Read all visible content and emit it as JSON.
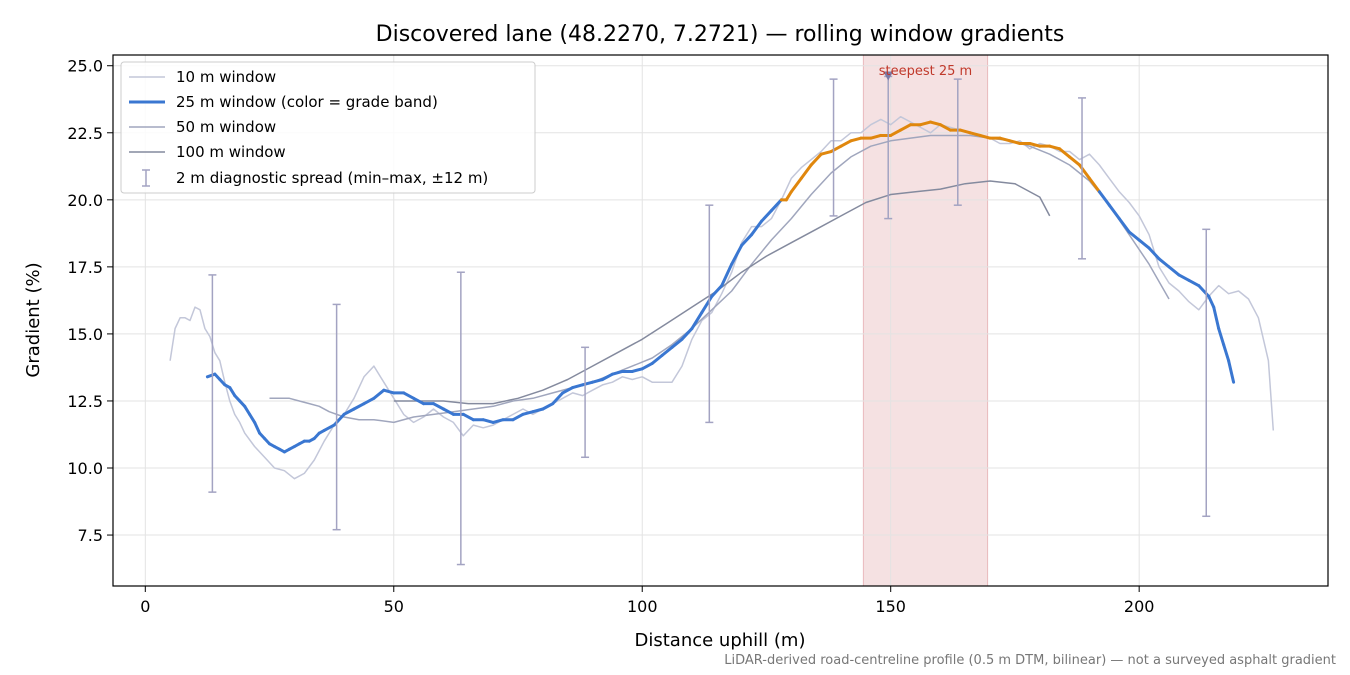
{
  "chart_data": {
    "type": "line",
    "title": "Discovered lane (48.2270, 7.2721) — rolling window gradients",
    "xlabel": "Distance uphill (m)",
    "ylabel": "Gradient (%)",
    "xlim": [
      -6.5,
      238
    ],
    "ylim": [
      5.6,
      25.4
    ],
    "xticks": [
      0,
      50,
      100,
      150,
      200
    ],
    "yticks": [
      7.5,
      10.0,
      12.5,
      15.0,
      17.5,
      20.0,
      22.5,
      25.0
    ],
    "grid": true,
    "legend_position": "upper left",
    "footnote": "LiDAR-derived road-centreline profile (0.5 m DTM, bilinear) — not a surveyed asphalt gradient",
    "steepest_band": {
      "x_start": 144.5,
      "x_end": 169.5,
      "marker_x": 149.5,
      "marker_y": 24.6,
      "label": "steepest 25 m",
      "color": "#d9868b"
    },
    "series": [
      {
        "name": "10 m window",
        "color": "#c3c7d9",
        "x": [
          5,
          6,
          7,
          8,
          9,
          10,
          11,
          12,
          13,
          14,
          15,
          16,
          17,
          18,
          19,
          20,
          22,
          24,
          26,
          28,
          30,
          32,
          34,
          36,
          38,
          40,
          42,
          44,
          46,
          48,
          50,
          52,
          54,
          56,
          58,
          60,
          62,
          64,
          66,
          68,
          70,
          72,
          74,
          76,
          78,
          80,
          82,
          84,
          86,
          88,
          90,
          92,
          94,
          96,
          98,
          100,
          102,
          104,
          106,
          108,
          110,
          112,
          114,
          116,
          118,
          120,
          122,
          124,
          126,
          128,
          130,
          132,
          134,
          136,
          138,
          140,
          142,
          144,
          146,
          148,
          150,
          152,
          154,
          156,
          158,
          160,
          162,
          164,
          166,
          168,
          170,
          172,
          174,
          176,
          178,
          180,
          182,
          184,
          186,
          188,
          190,
          192,
          194,
          196,
          198,
          200,
          202,
          204,
          206,
          208,
          210,
          212,
          214,
          216,
          218,
          220,
          222,
          224,
          226,
          227
        ],
        "y": [
          14.0,
          15.2,
          15.6,
          15.6,
          15.5,
          16.0,
          15.9,
          15.2,
          14.9,
          14.3,
          14.0,
          13.2,
          12.5,
          12.0,
          11.7,
          11.3,
          10.8,
          10.4,
          10.0,
          9.9,
          9.6,
          9.8,
          10.3,
          11.0,
          11.6,
          12.0,
          12.6,
          13.4,
          13.8,
          13.2,
          12.6,
          12.0,
          11.7,
          11.9,
          12.2,
          11.9,
          11.7,
          11.2,
          11.6,
          11.5,
          11.6,
          11.8,
          12.0,
          12.2,
          12.0,
          12.2,
          12.4,
          12.6,
          12.8,
          12.7,
          12.9,
          13.1,
          13.2,
          13.4,
          13.3,
          13.4,
          13.2,
          13.2,
          13.2,
          13.8,
          14.8,
          15.5,
          15.8,
          16.5,
          17.3,
          18.4,
          19.0,
          19.0,
          19.3,
          20.0,
          20.8,
          21.2,
          21.5,
          21.8,
          22.2,
          22.2,
          22.5,
          22.5,
          22.8,
          23.0,
          22.8,
          23.1,
          22.9,
          22.7,
          22.5,
          22.8,
          22.7,
          22.6,
          22.5,
          22.4,
          22.3,
          22.1,
          22.1,
          22.2,
          21.9,
          22.1,
          22.0,
          21.8,
          21.8,
          21.5,
          21.7,
          21.3,
          20.8,
          20.3,
          19.9,
          19.4,
          18.7,
          17.5,
          16.9,
          16.6,
          16.2,
          15.9,
          16.4,
          16.8,
          16.5,
          16.6,
          16.3,
          15.6,
          14.0,
          11.4
        ]
      },
      {
        "name": "25 m window (color = grade band)",
        "color": "#3a77d1",
        "color_steep": "#e0870d",
        "steep_threshold": 20.0,
        "x": [
          12.5,
          14,
          15,
          16,
          17,
          18,
          19,
          20,
          21,
          22,
          23,
          24,
          25,
          26,
          27,
          28,
          29,
          30,
          31,
          32,
          33,
          34,
          35,
          36,
          38,
          40,
          42,
          44,
          46,
          48,
          50,
          52,
          54,
          56,
          58,
          60,
          62,
          64,
          66,
          68,
          70,
          72,
          74,
          76,
          78,
          80,
          82,
          84,
          86,
          88,
          90,
          92,
          94,
          96,
          98,
          100,
          102,
          104,
          106,
          108,
          110,
          112,
          114,
          116,
          118,
          120,
          122,
          124,
          126,
          128,
          129,
          130,
          132,
          134,
          136,
          138,
          140,
          142,
          144,
          146,
          148,
          150,
          152,
          154,
          156,
          158,
          160,
          162,
          164,
          166,
          168,
          170,
          172,
          174,
          176,
          178,
          180,
          182,
          184,
          186,
          188,
          190,
          192,
          194,
          196,
          198,
          200,
          202,
          204,
          206,
          208,
          210,
          212,
          214,
          215,
          216,
          217,
          218,
          219
        ],
        "y": [
          13.4,
          13.5,
          13.3,
          13.1,
          13.0,
          12.7,
          12.5,
          12.3,
          12.0,
          11.7,
          11.3,
          11.1,
          10.9,
          10.8,
          10.7,
          10.6,
          10.7,
          10.8,
          10.9,
          11.0,
          11.0,
          11.1,
          11.3,
          11.4,
          11.6,
          12.0,
          12.2,
          12.4,
          12.6,
          12.9,
          12.8,
          12.8,
          12.6,
          12.4,
          12.4,
          12.2,
          12.0,
          12.0,
          11.8,
          11.8,
          11.7,
          11.8,
          11.8,
          12.0,
          12.1,
          12.2,
          12.4,
          12.8,
          13.0,
          13.1,
          13.2,
          13.3,
          13.5,
          13.6,
          13.6,
          13.7,
          13.9,
          14.2,
          14.5,
          14.8,
          15.2,
          15.8,
          16.4,
          16.8,
          17.6,
          18.3,
          18.7,
          19.2,
          19.6,
          20.0,
          20.0,
          20.3,
          20.8,
          21.3,
          21.7,
          21.8,
          22.0,
          22.2,
          22.3,
          22.3,
          22.4,
          22.4,
          22.6,
          22.8,
          22.8,
          22.9,
          22.8,
          22.6,
          22.6,
          22.5,
          22.4,
          22.3,
          22.3,
          22.2,
          22.1,
          22.1,
          22.0,
          22.0,
          21.9,
          21.6,
          21.3,
          20.8,
          20.3,
          19.8,
          19.3,
          18.8,
          18.5,
          18.2,
          17.8,
          17.5,
          17.2,
          17.0,
          16.8,
          16.4,
          16.0,
          15.2,
          14.6,
          14.0,
          13.2
        ]
      },
      {
        "name": "50 m window",
        "color": "#a0a6bd",
        "x": [
          25,
          27,
          29,
          31,
          33,
          35,
          37,
          40,
          43,
          46,
          50,
          54,
          58,
          62,
          66,
          70,
          74,
          78,
          82,
          86,
          90,
          94,
          98,
          102,
          106,
          110,
          114,
          118,
          122,
          126,
          130,
          134,
          138,
          142,
          146,
          150,
          154,
          158,
          162,
          166,
          170,
          174,
          178,
          182,
          186,
          190,
          194,
          198,
          202,
          206
        ],
        "y": [
          12.6,
          12.6,
          12.6,
          12.5,
          12.4,
          12.3,
          12.1,
          11.9,
          11.8,
          11.8,
          11.7,
          11.9,
          12.0,
          12.1,
          12.2,
          12.3,
          12.5,
          12.6,
          12.8,
          13.0,
          13.2,
          13.5,
          13.8,
          14.1,
          14.6,
          15.2,
          15.9,
          16.6,
          17.6,
          18.5,
          19.3,
          20.2,
          21.0,
          21.6,
          22.0,
          22.2,
          22.3,
          22.4,
          22.4,
          22.4,
          22.3,
          22.2,
          22.0,
          21.7,
          21.3,
          20.7,
          19.8,
          18.7,
          17.6,
          16.3
        ]
      },
      {
        "name": "100 m window",
        "color": "#848a9e",
        "x": [
          50,
          55,
          60,
          65,
          70,
          75,
          80,
          85,
          90,
          95,
          100,
          105,
          110,
          115,
          120,
          125,
          130,
          135,
          140,
          145,
          150,
          155,
          160,
          165,
          170,
          175,
          180,
          182
        ],
        "y": [
          12.5,
          12.5,
          12.5,
          12.4,
          12.4,
          12.6,
          12.9,
          13.3,
          13.8,
          14.3,
          14.8,
          15.4,
          16.0,
          16.6,
          17.3,
          17.9,
          18.4,
          18.9,
          19.4,
          19.9,
          20.2,
          20.3,
          20.4,
          20.6,
          20.7,
          20.6,
          20.1,
          19.4
        ]
      }
    ],
    "error_bars": {
      "name": "2 m diagnostic spread (min–max, ±12 m)",
      "color": "#a3a3c2",
      "x": [
        13.5,
        38.5,
        63.5,
        88.5,
        113.5,
        138.5,
        149.5,
        163.5,
        188.5,
        213.5
      ],
      "y_low": [
        9.1,
        7.7,
        6.4,
        10.4,
        11.7,
        19.4,
        19.3,
        19.8,
        17.8,
        8.2
      ],
      "y_high": [
        17.2,
        16.1,
        17.3,
        14.5,
        19.8,
        24.5,
        24.6,
        24.5,
        23.8,
        18.9
      ]
    }
  }
}
